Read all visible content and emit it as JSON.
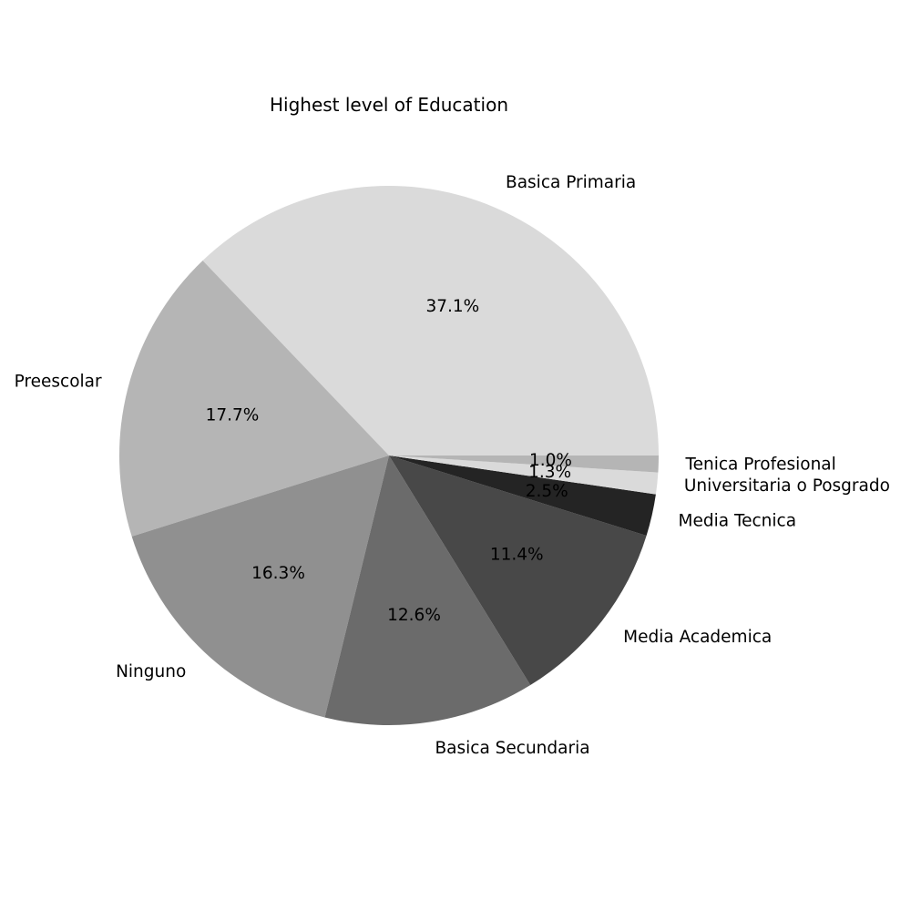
{
  "chart_data": {
    "type": "pie",
    "title": "Highest level of Education",
    "start_angle_deg": 0,
    "direction": "counterclockwise",
    "slices": [
      {
        "label": "Basica Primaria",
        "value": 37.1,
        "pct_text": "37.1%",
        "color": "#dadada"
      },
      {
        "label": "Preescolar",
        "value": 17.7,
        "pct_text": "17.7%",
        "color": "#b5b5b5"
      },
      {
        "label": "Ninguno",
        "value": 16.3,
        "pct_text": "16.3%",
        "color": "#909090"
      },
      {
        "label": "Basica Secundaria",
        "value": 12.6,
        "pct_text": "12.6%",
        "color": "#6b6b6b"
      },
      {
        "label": "Media Academica",
        "value": 11.4,
        "pct_text": "11.4%",
        "color": "#484848"
      },
      {
        "label": "Media Tecnica",
        "value": 2.5,
        "pct_text": "2.5%",
        "color": "#242424"
      },
      {
        "label": "Universitaria o Posgrado",
        "value": 1.3,
        "pct_text": "1.3%",
        "color": "#dadada"
      },
      {
        "label": "Tenica Profesional",
        "value": 1.0,
        "pct_text": "1.0%",
        "color": "#b5b5b5"
      }
    ]
  }
}
